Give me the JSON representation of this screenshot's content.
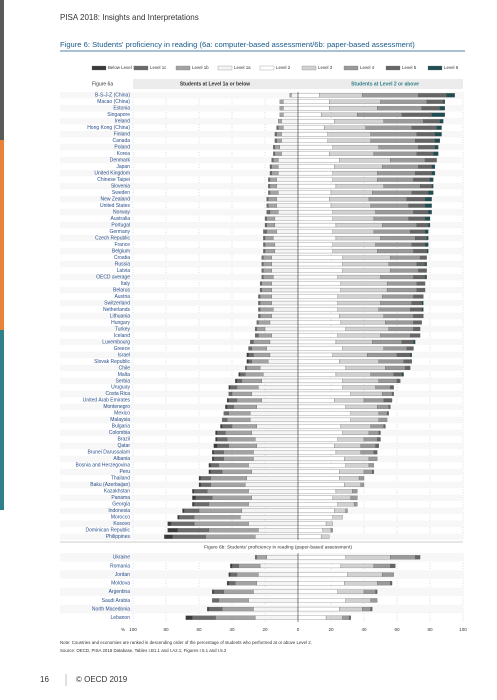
{
  "running_title": "PISA 2018: Insights and Interpretations",
  "figure_title": "Figure 6: Students' proficiency in reading (6a: computer-based assessment/6b: paper-based assessment)",
  "note": "Note: Countries and economies are ranked in descending order of the percentage of students who performed at or above Level 2.",
  "source": "Source: OECD, PISA 2018 Database, Tables I.B1.1 and I.A2.1; Figures I.5.1 and I.5.2",
  "footer": {
    "page": "16",
    "copyright": "© OECD 2019"
  },
  "chart_data": [
    {
      "type": "bar",
      "title": "Figure 6a",
      "left_heading": "Students at Level 1a or below",
      "right_heading": "Students at Level 2 or above",
      "xlim": [
        -100,
        100
      ],
      "categories": [
        "B-S-J-Z (China)",
        "Macao (China)",
        "Estonia",
        "Singapore",
        "Ireland",
        "Hong Kong (China)",
        "Finland",
        "Canada",
        "Poland",
        "Korea",
        "Denmark",
        "Japan",
        "United Kingdom",
        "Chinese Taipei",
        "Slovenia",
        "Sweden",
        "New Zealand",
        "United States",
        "Norway",
        "Australia",
        "Portugal",
        "Germany",
        "Czech Republic",
        "France",
        "Belgium",
        "Croatia",
        "Russia",
        "Latvia",
        "OECD average",
        "Italy",
        "Belarus",
        "Austria",
        "Switzerland",
        "Netherlands",
        "Lithuania",
        "Hungary",
        "Turkey",
        "Iceland",
        "Luxembourg",
        "Greece",
        "Israel",
        "Slovak Republic",
        "Chile",
        "Malta",
        "Serbia",
        "Uruguay",
        "Costa Rica",
        "United Arab Emirates",
        "Montenegro",
        "Mexico",
        "Malaysia",
        "Bulgaria",
        "Colombia",
        "Brazil",
        "Qatar",
        "Brunei Darussalam",
        "Albania",
        "Bosnia and Herzegovina",
        "Peru",
        "Thailand",
        "Baku (Azerbaijan)",
        "Kazakhstan",
        "Panama",
        "Georgia",
        "Indonesia",
        "Morocco",
        "Kosovo",
        "Dominican Republic",
        "Philippines"
      ],
      "series": [
        {
          "name": "Below Level 1c",
          "color": "#3a3a3a",
          "values": [
            0,
            0,
            0,
            0,
            0,
            0,
            0,
            0,
            0,
            0,
            0,
            0,
            0,
            0,
            0,
            0,
            0,
            0,
            0,
            0,
            0,
            0,
            0,
            0,
            0,
            0,
            0,
            0,
            0,
            0,
            0,
            0,
            0,
            0,
            0,
            0,
            0,
            0,
            0,
            0,
            1,
            1,
            0,
            1,
            1,
            1,
            0,
            1,
            1,
            0,
            0,
            1,
            1,
            1,
            2,
            1,
            1,
            1,
            1,
            1,
            1,
            1,
            2,
            1,
            1,
            1,
            2,
            6,
            5
          ]
        },
        {
          "name": "Level 1c",
          "color": "#6b6b6b",
          "values": [
            0,
            0,
            0,
            0,
            0,
            1,
            1,
            1,
            1,
            1,
            1,
            1,
            1,
            1,
            1,
            1,
            1,
            1,
            2,
            1,
            1,
            2,
            1,
            1,
            1,
            1,
            1,
            1,
            1,
            1,
            1,
            1,
            1,
            1,
            1,
            1,
            1,
            2,
            2,
            2,
            3,
            2,
            1,
            3,
            3,
            4,
            2,
            5,
            4,
            3,
            3,
            6,
            5,
            6,
            7,
            6,
            6,
            5,
            7,
            6,
            6,
            8,
            10,
            9,
            9,
            9,
            14,
            19,
            20
          ]
        },
        {
          "name": "Level 1b",
          "color": "#a3a3a3",
          "values": [
            1,
            2,
            2,
            2,
            2,
            3,
            3,
            3,
            3,
            4,
            3,
            4,
            4,
            4,
            4,
            5,
            5,
            5,
            5,
            5,
            5,
            6,
            5,
            6,
            6,
            5,
            5,
            5,
            6,
            6,
            6,
            7,
            7,
            8,
            7,
            7,
            5,
            8,
            10,
            9,
            10,
            10,
            8,
            11,
            12,
            13,
            12,
            15,
            14,
            13,
            14,
            15,
            16,
            17,
            17,
            18,
            18,
            18,
            18,
            22,
            21,
            25,
            24,
            24,
            26,
            28,
            33,
            30,
            30
          ]
        },
        {
          "name": "Level 1a",
          "color": "#f4f4f4",
          "values": [
            4,
            9,
            9,
            9,
            10,
            9,
            10,
            10,
            11,
            10,
            12,
            12,
            12,
            13,
            13,
            12,
            13,
            13,
            12,
            14,
            14,
            13,
            15,
            14,
            14,
            16,
            16,
            16,
            15,
            16,
            16,
            16,
            16,
            15,
            16,
            17,
            20,
            16,
            17,
            19,
            17,
            18,
            23,
            21,
            22,
            24,
            28,
            22,
            25,
            29,
            29,
            25,
            28,
            26,
            25,
            27,
            27,
            30,
            28,
            31,
            32,
            30,
            28,
            30,
            34,
            35,
            30,
            24,
            26
          ]
        },
        {
          "name": "Level 2",
          "color": "#ffffff",
          "values": [
            13,
            19,
            19,
            14,
            22,
            16,
            18,
            18,
            21,
            19,
            25,
            22,
            21,
            21,
            23,
            20,
            19,
            20,
            21,
            21,
            23,
            21,
            23,
            21,
            21,
            27,
            27,
            27,
            24,
            26,
            26,
            24,
            24,
            24,
            25,
            26,
            29,
            24,
            23,
            27,
            21,
            25,
            29,
            23,
            27,
            27,
            32,
            22,
            29,
            32,
            32,
            26,
            27,
            24,
            22,
            23,
            28,
            29,
            25,
            25,
            28,
            23,
            21,
            24,
            22,
            21,
            17,
            15,
            14
          ]
        },
        {
          "name": "Level 3",
          "color": "#d2d2d2",
          "values": [
            26,
            31,
            29,
            22,
            30,
            25,
            26,
            26,
            28,
            27,
            31,
            29,
            27,
            27,
            29,
            25,
            24,
            24,
            26,
            25,
            28,
            25,
            27,
            26,
            27,
            29,
            28,
            29,
            26,
            28,
            28,
            27,
            26,
            25,
            27,
            27,
            26,
            26,
            22,
            25,
            21,
            24,
            24,
            21,
            22,
            20,
            19,
            18,
            19,
            17,
            17,
            18,
            16,
            16,
            16,
            15,
            15,
            14,
            15,
            12,
            10,
            10,
            11,
            10,
            7,
            6,
            4,
            5,
            5
          ]
        },
        {
          "name": "Level 4",
          "color": "#9a9a9a",
          "values": [
            34,
            28,
            27,
            27,
            24,
            28,
            28,
            27,
            24,
            26,
            21,
            22,
            23,
            22,
            22,
            24,
            23,
            23,
            23,
            21,
            21,
            22,
            21,
            22,
            22,
            18,
            17,
            17,
            20,
            18,
            18,
            19,
            19,
            19,
            18,
            17,
            15,
            18,
            18,
            14,
            18,
            15,
            12,
            14,
            11,
            9,
            6,
            12,
            7,
            5,
            5,
            8,
            6,
            8,
            9,
            8,
            5,
            3,
            5,
            3,
            2,
            3,
            4,
            2,
            1,
            0,
            0,
            1,
            0
          ]
        },
        {
          "name": "Level 5",
          "color": "#666666",
          "values": [
            17,
            10,
            11,
            18,
            10,
            15,
            11,
            12,
            10,
            10,
            7,
            8,
            10,
            10,
            7,
            10,
            11,
            10,
            9,
            10,
            7,
            9,
            7,
            8,
            8,
            4,
            5,
            5,
            7,
            5,
            5,
            6,
            6,
            7,
            6,
            5,
            4,
            6,
            7,
            4,
            8,
            5,
            3,
            5,
            2,
            2,
            1,
            5,
            1,
            1,
            0,
            1,
            1,
            2,
            2,
            2,
            0,
            0,
            1,
            0,
            0,
            0,
            0,
            0,
            0,
            0,
            0,
            0,
            0
          ]
        },
        {
          "name": "Level 6",
          "color": "#1f4e52",
          "values": [
            5,
            1,
            3,
            8,
            2,
            3,
            4,
            3,
            2,
            3,
            0,
            2,
            2,
            2,
            1,
            3,
            4,
            4,
            2,
            3,
            1,
            2,
            1,
            2,
            1,
            0,
            1,
            0,
            1,
            0,
            0,
            0,
            1,
            1,
            0,
            0,
            0,
            0,
            1,
            0,
            1,
            0,
            0,
            1,
            0,
            0,
            0,
            0,
            0,
            0,
            0,
            0,
            0,
            0,
            0,
            0,
            0,
            0,
            0,
            0,
            0,
            0,
            0,
            0,
            0,
            0,
            0,
            0,
            0
          ]
        }
      ]
    },
    {
      "type": "bar",
      "title": "Figure 6b: Students' proficiency in reading (paper-based assessment)",
      "xlim": [
        -100,
        100
      ],
      "xlabel": "%",
      "xticks": [
        {
          "value": -100,
          "label": "100"
        },
        {
          "value": -80,
          "label": "80"
        },
        {
          "value": -60,
          "label": "60"
        },
        {
          "value": -40,
          "label": "40"
        },
        {
          "value": -20,
          "label": "20"
        },
        0,
        20,
        40,
        60,
        80,
        100
      ],
      "categories": [
        "Ukraine",
        "Romania",
        "Jordan",
        "Moldova",
        "Argentina",
        "Saudi Arabia",
        "North Macedonia",
        "Lebanon"
      ],
      "series": [
        {
          "values": [
            0,
            1,
            1,
            1,
            1,
            0,
            1,
            4
          ]
        },
        {
          "values": [
            1,
            4,
            4,
            4,
            6,
            4,
            8,
            14
          ]
        },
        {
          "values": [
            6,
            13,
            13,
            13,
            18,
            18,
            19,
            24
          ]
        },
        {
          "values": [
            19,
            23,
            24,
            25,
            27,
            30,
            27,
            26
          ]
        },
        {
          "values": [
            29,
            26,
            30,
            28,
            24,
            29,
            25,
            17
          ]
        },
        {
          "values": [
            27,
            20,
            21,
            20,
            16,
            15,
            14,
            10
          ]
        },
        {
          "values": [
            15,
            10,
            7,
            8,
            7,
            4,
            5,
            4
          ]
        },
        {
          "values": [
            3,
            3,
            0,
            1,
            1,
            0,
            1,
            1
          ]
        },
        {
          "values": [
            0,
            0,
            0,
            0,
            0,
            0,
            0,
            0
          ]
        }
      ]
    }
  ]
}
